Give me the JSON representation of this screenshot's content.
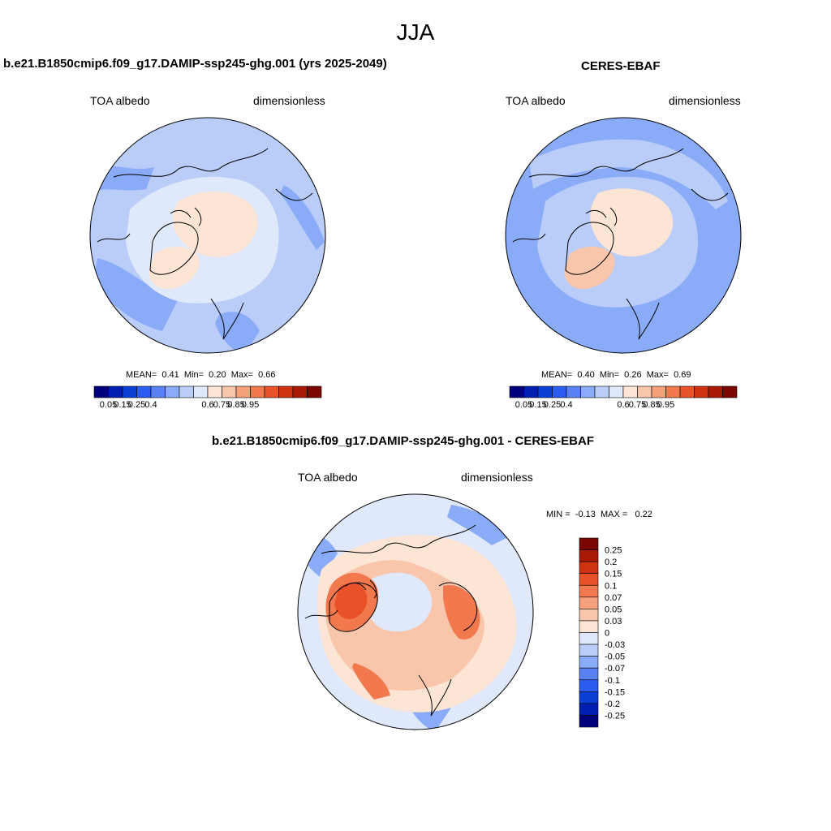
{
  "season": "JJA",
  "panels": [
    {
      "title": "b.e21.B1850cmip6.f09_g17.DAMIP-ssp245-ghg.001 (yrs 2025-2049)",
      "var_label": "TOA albedo",
      "units": "dimensionless",
      "stats": {
        "mean_label": "MEAN=",
        "mean": "0.41",
        "min_label": "Min=",
        "min": "0.20",
        "max_label": "Max=",
        "max": "0.66"
      }
    },
    {
      "title": "CERES-EBAF",
      "var_label": "TOA albedo",
      "units": "dimensionless",
      "stats": {
        "mean_label": "MEAN=",
        "mean": "0.40",
        "min_label": "Min=",
        "min": "0.26",
        "max_label": "Max=",
        "max": "0.69"
      }
    },
    {
      "title": "b.e21.B1850cmip6.f09_g17.DAMIP-ssp245-ghg.001 - CERES-EBAF",
      "var_label": "TOA albedo",
      "units": "dimensionless",
      "stats": {
        "min_label": "MIN =",
        "min": "-0.13",
        "max_label": "MAX =",
        "max": "0.22"
      }
    }
  ],
  "colorbar_abs": {
    "colors": [
      "#00007f",
      "#001fb0",
      "#0a3fd6",
      "#2a5cf0",
      "#5a82f5",
      "#8aabf7",
      "#b9cdf8",
      "#dfe9fb",
      "#fce5d4",
      "#f9c6ac",
      "#f6a07c",
      "#f2784e",
      "#e95228",
      "#cf3210",
      "#a81a06",
      "#7a0602"
    ],
    "tick_labels": [
      "0.05",
      "0.15",
      "0.25",
      "0.4",
      "0.6",
      "0.75",
      "0.85",
      "0.95"
    ]
  },
  "colorbar_diff": {
    "colors": [
      "#7a0602",
      "#a81a06",
      "#cf3210",
      "#e95228",
      "#f2784e",
      "#f6a07c",
      "#f9c6ac",
      "#fce5d4",
      "#dfe9fb",
      "#b9cdf8",
      "#8aabf7",
      "#5a82f5",
      "#2a5cf0",
      "#0a3fd6",
      "#001fb0",
      "#00007f"
    ],
    "tick_labels": [
      "0.25",
      "0.2",
      "0.15",
      "0.1",
      "0.07",
      "0.05",
      "0.03",
      "0",
      "-0.03",
      "-0.05",
      "-0.07",
      "-0.1",
      "-0.15",
      "-0.2",
      "-0.25"
    ]
  },
  "map_colors": {
    "ocean_abs": "#b9cdf8",
    "low_abs": "#8aabf7",
    "pale_abs": "#dfe9fb",
    "ice_abs": "#fce5d4",
    "ice2_abs": "#f9c6ac",
    "diff_base": "#dfe9fb",
    "diff_zero": "#fce5d4",
    "diff_mid": "#f9c6ac",
    "diff_high": "#f2784e",
    "diff_max": "#e95228",
    "diff_neg": "#8aabf7"
  }
}
